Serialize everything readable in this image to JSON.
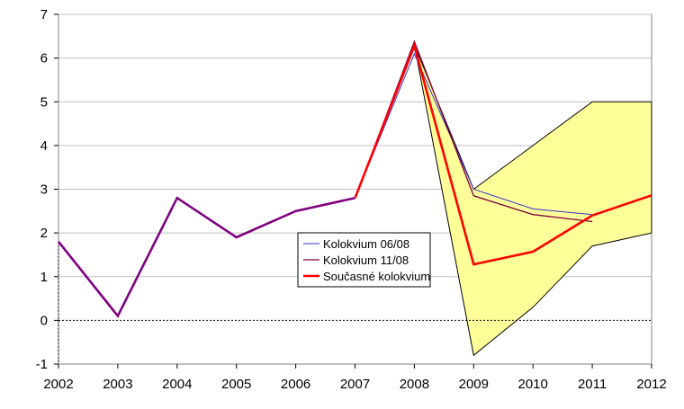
{
  "chart_data": {
    "type": "line",
    "title": "",
    "xlabel": "",
    "ylabel": "",
    "x": [
      "2002",
      "2003",
      "2004",
      "2005",
      "2006",
      "2007",
      "2008",
      "2009",
      "2010",
      "2011",
      "2012"
    ],
    "ylim": [
      -1,
      7
    ],
    "yticks": [
      "-1",
      "0",
      "1",
      "2",
      "3",
      "4",
      "5",
      "6",
      "7"
    ],
    "grid": true,
    "legend_position": "center",
    "band": {
      "upper": [
        null,
        null,
        null,
        null,
        null,
        null,
        6.3,
        3.0,
        4.0,
        5.0,
        5.0
      ],
      "lower": [
        null,
        null,
        null,
        null,
        null,
        null,
        6.3,
        -0.8,
        0.3,
        1.7,
        2.0
      ],
      "color": "#ffff99"
    },
    "history": {
      "values": [
        1.8,
        0.1,
        2.8,
        1.9,
        2.5,
        2.8
      ],
      "color": "#800080"
    },
    "series": [
      {
        "name": "Kolokvium 06/08",
        "values": [
          null,
          null,
          null,
          null,
          null,
          2.8,
          6.1,
          3.0,
          2.55,
          2.42,
          null
        ],
        "color": "#3333cc",
        "width": 1
      },
      {
        "name": "Kolokvium 11/08",
        "values": [
          null,
          null,
          null,
          null,
          null,
          2.8,
          6.38,
          2.85,
          2.42,
          2.26,
          null
        ],
        "color": "#800040",
        "width": 1.3
      },
      {
        "name": "Současné kolokvium",
        "values": [
          null,
          null,
          null,
          null,
          null,
          2.8,
          6.28,
          1.28,
          1.57,
          2.4,
          2.86
        ],
        "color": "#ff0000",
        "width": 2.6
      }
    ]
  }
}
